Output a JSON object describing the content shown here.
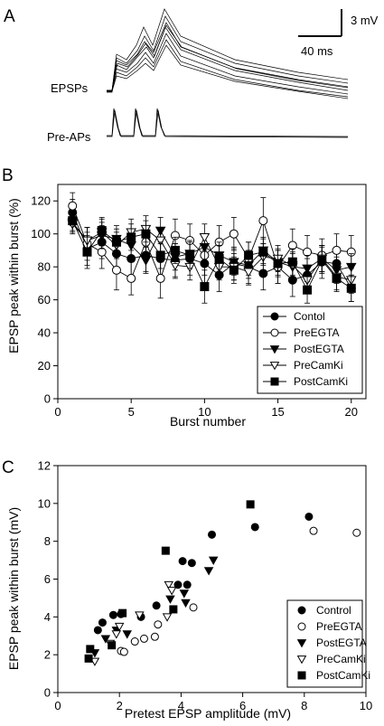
{
  "panels": {
    "a": {
      "letter": "A",
      "scale_v": "3 mV",
      "scale_t": "40 ms",
      "trace_top_label": "EPSPs",
      "trace_bottom_label": "Pre-APs"
    },
    "b": {
      "letter": "B"
    },
    "c": {
      "letter": "C"
    }
  },
  "chart_data": [
    {
      "type": "line",
      "panel": "B",
      "xlabel": "Burst number",
      "ylabel": "EPSP peak within burst (%)",
      "xlim": [
        0,
        21
      ],
      "ylim": [
        0,
        130
      ],
      "xticks": [
        0,
        5,
        10,
        15,
        20
      ],
      "yticks": [
        0,
        20,
        40,
        60,
        80,
        100,
        120
      ],
      "legend_position": "lower-right",
      "x": [
        1,
        2,
        3,
        4,
        5,
        6,
        7,
        8,
        9,
        10,
        11,
        12,
        13,
        14,
        15,
        16,
        17,
        18,
        19,
        20
      ],
      "series": [
        {
          "name": "Contol",
          "marker": "filled-circle",
          "values": [
            113,
            91,
            95,
            88,
            85,
            87,
            85,
            84,
            85,
            82,
            75,
            82,
            80,
            76,
            80,
            72,
            75,
            83,
            82,
            67
          ],
          "errors": [
            8,
            10,
            10,
            10,
            10,
            10,
            12,
            10,
            10,
            12,
            10,
            10,
            10,
            10,
            10,
            10,
            10,
            10,
            10,
            8
          ]
        },
        {
          "name": "PreEGTA",
          "marker": "open-circle",
          "values": [
            117,
            94,
            89,
            78,
            73,
            95,
            73,
            99,
            96,
            87,
            95,
            100,
            85,
            108,
            80,
            93,
            89,
            87,
            90,
            89
          ],
          "errors": [
            8,
            10,
            10,
            12,
            10,
            10,
            12,
            10,
            10,
            12,
            10,
            10,
            10,
            14,
            10,
            10,
            10,
            10,
            10,
            10
          ]
        },
        {
          "name": "PostEGTA",
          "marker": "filled-triangle-down",
          "values": [
            107,
            96,
            99,
            97,
            93,
            84,
            102,
            86,
            88,
            92,
            87,
            83,
            81,
            90,
            83,
            80,
            79,
            85,
            78,
            80
          ],
          "errors": [
            6,
            8,
            8,
            8,
            8,
            8,
            8,
            8,
            8,
            8,
            8,
            8,
            8,
            8,
            8,
            8,
            8,
            8,
            8,
            8
          ]
        },
        {
          "name": "PreCamKi",
          "marker": "open-triangle-down",
          "values": [
            106,
            96,
            101,
            93,
            101,
            103,
            96,
            81,
            80,
            98,
            80,
            80,
            77,
            86,
            85,
            81,
            72,
            85,
            74,
            72
          ],
          "errors": [
            6,
            8,
            8,
            8,
            8,
            8,
            8,
            8,
            8,
            8,
            8,
            8,
            8,
            8,
            8,
            8,
            8,
            8,
            8,
            8
          ]
        },
        {
          "name": "PostCamKi",
          "marker": "filled-square",
          "values": [
            108,
            89,
            102,
            95,
            98,
            100,
            87,
            90,
            87,
            68,
            85,
            78,
            87,
            89,
            82,
            83,
            66,
            84,
            73,
            67
          ],
          "errors": [
            6,
            10,
            8,
            8,
            8,
            8,
            8,
            8,
            8,
            10,
            8,
            8,
            8,
            8,
            8,
            8,
            8,
            8,
            8,
            8
          ]
        }
      ]
    },
    {
      "type": "scatter",
      "panel": "C",
      "xlabel": "Pretest EPSP amplitude (mV)",
      "ylabel": "EPSP peak within burst (mV)",
      "xlim": [
        0,
        10
      ],
      "ylim": [
        0,
        12
      ],
      "xticks": [
        0,
        2,
        4,
        6,
        8,
        10
      ],
      "yticks": [
        0,
        2,
        4,
        6,
        8,
        10,
        12
      ],
      "legend_position": "lower-right",
      "series": [
        {
          "name": "Control",
          "marker": "filled-circle",
          "points": [
            [
              1.3,
              3.3
            ],
            [
              1.45,
              3.7
            ],
            [
              1.8,
              4.1
            ],
            [
              2.05,
              4.15
            ],
            [
              2.7,
              4.0
            ],
            [
              3.2,
              4.6
            ],
            [
              3.9,
              5.7
            ],
            [
              4.2,
              5.7
            ],
            [
              4.05,
              6.95
            ],
            [
              4.35,
              6.85
            ],
            [
              5.0,
              8.35
            ],
            [
              6.4,
              8.75
            ],
            [
              8.15,
              9.3
            ]
          ]
        },
        {
          "name": "PreEGTA",
          "marker": "open-circle",
          "points": [
            [
              2.05,
              2.2
            ],
            [
              2.15,
              2.15
            ],
            [
              2.5,
              2.7
            ],
            [
              2.8,
              2.85
            ],
            [
              3.15,
              2.95
            ],
            [
              3.25,
              3.6
            ],
            [
              4.4,
              4.5
            ],
            [
              8.3,
              8.55
            ],
            [
              9.7,
              8.45
            ]
          ]
        },
        {
          "name": "PostEGTA",
          "marker": "filled-triangle-down",
          "points": [
            [
              1.2,
              2.1
            ],
            [
              1.55,
              2.85
            ],
            [
              1.9,
              3.3
            ],
            [
              2.25,
              3.1
            ],
            [
              3.65,
              4.95
            ],
            [
              4.1,
              5.25
            ],
            [
              4.15,
              4.75
            ],
            [
              4.9,
              6.45
            ],
            [
              5.05,
              7.0
            ]
          ]
        },
        {
          "name": "PreCamKi",
          "marker": "open-triangle-down",
          "points": [
            [
              1.2,
              1.65
            ],
            [
              1.7,
              2.6
            ],
            [
              1.9,
              3.1
            ],
            [
              2.0,
              3.5
            ],
            [
              2.65,
              4.1
            ],
            [
              3.55,
              4.0
            ],
            [
              3.6,
              5.7
            ],
            [
              3.7,
              5.4
            ]
          ]
        },
        {
          "name": "PostCamKi",
          "marker": "filled-square",
          "points": [
            [
              1.0,
              1.8
            ],
            [
              1.05,
              2.3
            ],
            [
              1.75,
              2.5
            ],
            [
              2.1,
              4.2
            ],
            [
              3.5,
              7.5
            ],
            [
              3.75,
              4.4
            ],
            [
              6.25,
              9.95
            ]
          ]
        }
      ]
    }
  ]
}
